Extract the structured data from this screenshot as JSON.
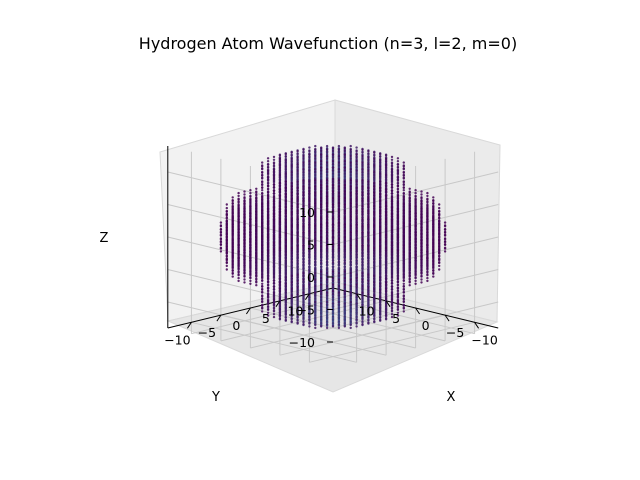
{
  "chart_data": {
    "type": "scatter",
    "projection": "3d",
    "title": "Hydrogen Atom Wavefunction (n=3, l=2, m=0)",
    "xlabel": "X",
    "ylabel": "Y",
    "zlabel": "Z",
    "xlim": [
      -14,
      14
    ],
    "ylim": [
      -14,
      14
    ],
    "zlim": [
      -14,
      14
    ],
    "x_ticks": [
      10,
      5,
      0,
      -5,
      -10
    ],
    "y_ticks": [
      -10,
      -5,
      0,
      5,
      10
    ],
    "z_ticks": [
      10,
      5,
      0,
      -5,
      -10
    ],
    "grid": true,
    "colormap": "viridis",
    "point_color_low": "#440154",
    "point_color_high": "#3b528b",
    "grid_spacing": 1,
    "regions": [
      {
        "name": "upper lobe",
        "z_range": [
          6,
          13
        ],
        "radius_max": 9
      },
      {
        "name": "equatorial torus",
        "z_range": [
          -5,
          5
        ],
        "radius_range": [
          0,
          14
        ]
      },
      {
        "name": "lower lobe",
        "z_range": [
          -13,
          -6
        ],
        "radius_max": 9
      }
    ]
  }
}
